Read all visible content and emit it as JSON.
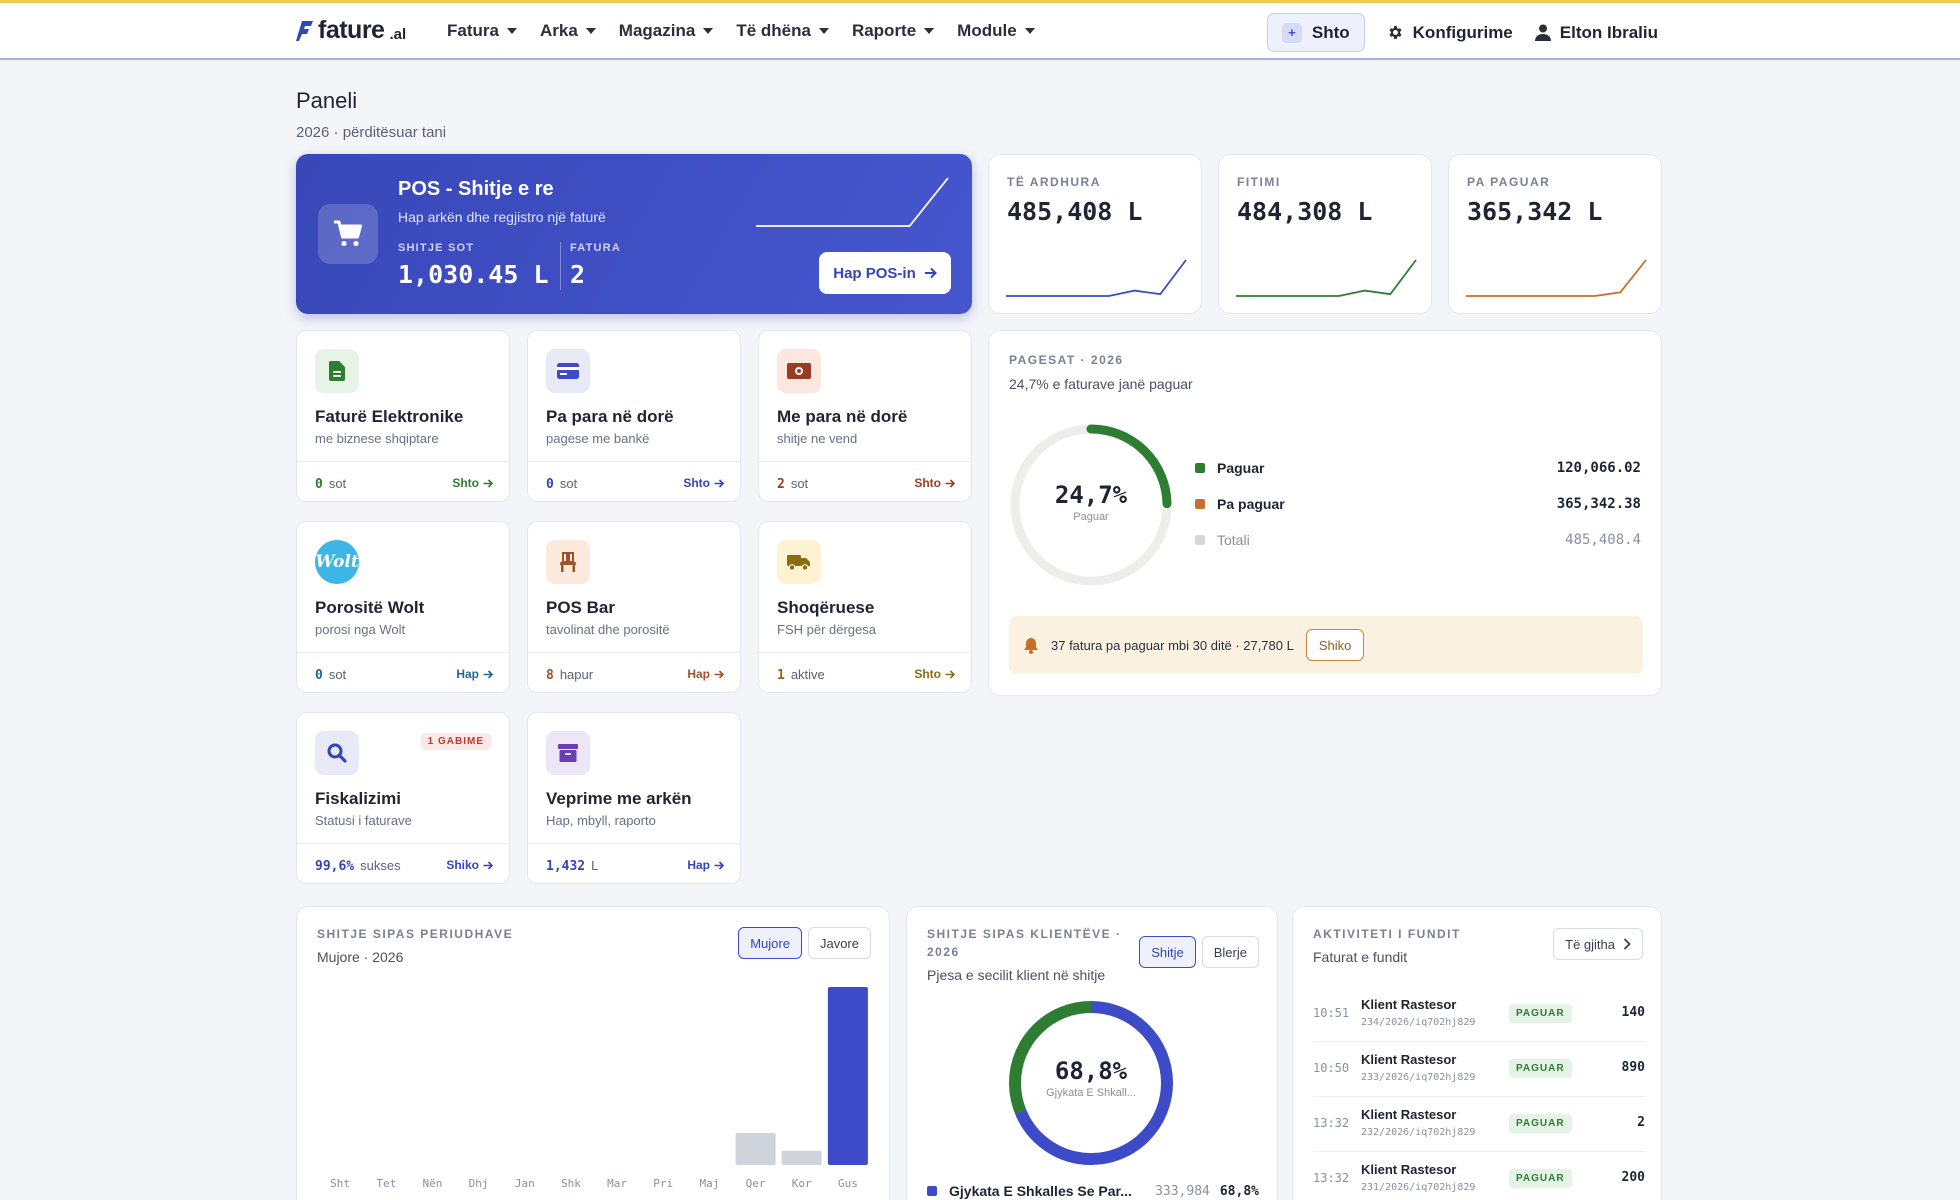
{
  "brand": {
    "name": "fature",
    "suffix": ".al"
  },
  "nav": {
    "items": [
      "Fatura",
      "Arka",
      "Magazina",
      "Të dhëna",
      "Raporte",
      "Module"
    ],
    "shto": "Shto",
    "config": "Konfigurime",
    "user": "Elton Ibraliu"
  },
  "page": {
    "title": "Paneli",
    "subtitle": "2026 · përditësuar tani"
  },
  "hero": {
    "title": "POS - Shitje e re",
    "subtitle": "Hap arkën dhe regjistro një faturë",
    "sales_label": "SHITJE SOT",
    "sales_value": "1,030.45 L",
    "invoices_label": "FATURA",
    "invoices_value": "2",
    "button": "Hap POS-in",
    "trend": [
      0,
      0,
      0,
      0,
      0,
      1
    ]
  },
  "stats": [
    {
      "label": "TË ARDHURA",
      "value": "485,408 L",
      "color": "#3d4bc9",
      "trend": [
        0,
        0,
        0,
        0,
        0,
        0.15,
        0.05,
        1
      ]
    },
    {
      "label": "FITIMI",
      "value": "484,308 L",
      "color": "#2e7d32",
      "trend": [
        0,
        0,
        0,
        0,
        0,
        0.15,
        0.05,
        1
      ]
    },
    {
      "label": "PA PAGUAR",
      "value": "365,342 L",
      "color": "#c8702a",
      "trend": [
        0,
        0,
        0,
        0,
        0,
        0,
        0.1,
        1
      ]
    }
  ],
  "modules": [
    {
      "title": "Faturë Elektronike",
      "sub": "me biznese shqiptare",
      "count": "0",
      "unit": "sot",
      "action": "Shto",
      "icon": "document-icon",
      "bg": "#e6f4e8",
      "fg": "#2e7d32",
      "actionColor": "#2e7d32"
    },
    {
      "title": "Pa para në dorë",
      "sub": "pagese me bankë",
      "count": "0",
      "unit": "sot",
      "action": "Shto",
      "icon": "credit-card-icon",
      "bg": "#e8eaf8",
      "fg": "#3d4bc9",
      "actionColor": "#3445b4"
    },
    {
      "title": "Me para në dorë",
      "sub": "shitje ne vend",
      "count": "2",
      "unit": "sot",
      "action": "Shto",
      "icon": "cash-icon",
      "bg": "#fbe6e0",
      "fg": "#9a3b26",
      "actionColor": "#9a3b26"
    },
    {
      "title": "Porositë Wolt",
      "sub": "porosi nga Wolt",
      "count": "0",
      "unit": "sot",
      "action": "Hap",
      "icon": "wolt-logo-icon",
      "bg": "#3db5e6",
      "fg": "#ffffff",
      "actionColor": "#1f6b8f"
    },
    {
      "title": "POS Bar",
      "sub": "tavolinat dhe porositë",
      "count": "8",
      "unit": "hapur",
      "action": "Hap",
      "icon": "chair-icon",
      "bg": "#fbe9dc",
      "fg": "#a0522d",
      "actionColor": "#a0522d"
    },
    {
      "title": "Shoqëruese",
      "sub": "FSH për dërgesa",
      "count": "1",
      "unit": "aktive",
      "action": "Shto",
      "icon": "truck-icon",
      "bg": "#fdf3d3",
      "fg": "#8a6d0f",
      "actionColor": "#8a6d0f"
    },
    {
      "title": "Fiskalizimi",
      "sub": "Statusi i faturave",
      "count": "99,6%",
      "unit": "sukses",
      "action": "Shiko",
      "icon": "search-icon",
      "bg": "#e8eaf8",
      "fg": "#3445b4",
      "actionColor": "#3445b4",
      "badge": "1 GABIME"
    },
    {
      "title": "Veprime me arkën",
      "sub": "Hap, mbyll, raporto",
      "count": "1,432",
      "unit": "L",
      "action": "Hap",
      "icon": "archive-icon",
      "bg": "#ece6f7",
      "fg": "#6a3fb5",
      "actionColor": "#3445b4"
    }
  ],
  "pagesat": {
    "label": "PAGESAT · 2026",
    "subtitle": "24,7% e faturave janë paguar",
    "pct_text": "24,7%",
    "pct_label": "Paguar",
    "pct": 24.7,
    "legend": [
      {
        "name": "Paguar",
        "value": "120,066.02",
        "color": "#2e7d32"
      },
      {
        "name": "Pa paguar",
        "value": "365,342.38",
        "color": "#c8702a"
      },
      {
        "name": "Totali",
        "value": "485,408.4",
        "color": "#d5d7dc"
      }
    ],
    "alert": "37 fatura pa paguar mbi 30 ditë · 27,780 L",
    "alert_btn": "Shiko"
  },
  "sales_period": {
    "label": "SHITJE SIPAS PERIUDHAVE",
    "subtitle": "Mujore · 2026",
    "toggle": [
      "Mujore",
      "Javore"
    ],
    "chart_data": {
      "type": "bar",
      "categories": [
        "Sht",
        "Tet",
        "Nën",
        "Dhj",
        "Jan",
        "Shk",
        "Mar",
        "Pri",
        "Maj",
        "Qer",
        "Kor",
        "Gus"
      ],
      "values": [
        0,
        0,
        0,
        0,
        0,
        0,
        0,
        0,
        0,
        72000,
        32000,
        400000
      ],
      "highlight_index": 11
    }
  },
  "sales_clients": {
    "label": "SHITJE SIPAS KLIENTËVE ·",
    "label2": "2026",
    "subtitle": "Pjesa e secilit klient në shitje",
    "toggle": [
      "Shitje",
      "Blerje"
    ],
    "pct_text": "68,8%",
    "pct_label": "Gjykata E Shkall...",
    "chart_data": {
      "type": "pie",
      "slices": [
        {
          "name": "Gjykata E Shkalles Se Par...",
          "value": 333984,
          "pct": 68.8,
          "color": "#3d4bc9"
        },
        {
          "name": "",
          "value": 151424,
          "pct": 31.2,
          "color": "#2e7d32"
        }
      ]
    },
    "row": {
      "name": "Gjykata E Shkalles Se Par...",
      "value": "333,984",
      "pct": "68,8%"
    }
  },
  "activity": {
    "label": "AKTIVITETI I FUNDIT",
    "subtitle": "Faturat e fundit",
    "all_btn": "Të gjitha",
    "rows": [
      {
        "time": "10:51",
        "name": "Klient Rastesor",
        "ref": "234/2026/iq702hj829",
        "status": "PAGUAR",
        "amount": "140"
      },
      {
        "time": "10:50",
        "name": "Klient Rastesor",
        "ref": "233/2026/iq702hj829",
        "status": "PAGUAR",
        "amount": "890"
      },
      {
        "time": "13:32",
        "name": "Klient Rastesor",
        "ref": "232/2026/iq702hj829",
        "status": "PAGUAR",
        "amount": "2"
      },
      {
        "time": "13:32",
        "name": "Klient Rastesor",
        "ref": "231/2026/iq702hj829",
        "status": "PAGUAR",
        "amount": "200"
      }
    ]
  }
}
